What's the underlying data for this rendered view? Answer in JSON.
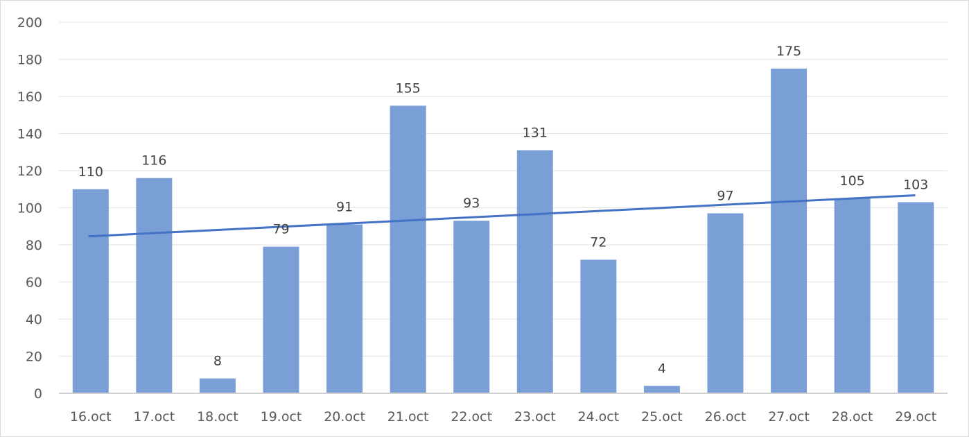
{
  "chart_data": {
    "type": "bar",
    "title": "",
    "xlabel": "",
    "ylabel": "",
    "categories": [
      "16.oct",
      "17.oct",
      "18.oct",
      "19.oct",
      "20.oct",
      "21.oct",
      "22.oct",
      "23.oct",
      "24.oct",
      "25.oct",
      "26.oct",
      "27.oct",
      "28.oct",
      "29.oct"
    ],
    "values": [
      110,
      116,
      8,
      79,
      91,
      155,
      93,
      131,
      72,
      4,
      97,
      175,
      105,
      103
    ],
    "data_labels": [
      "110",
      "116",
      "8",
      "79",
      "91",
      "155",
      "93",
      "131",
      "72",
      "4",
      "97",
      "175",
      "105",
      "103"
    ],
    "ylim": [
      0,
      200
    ],
    "yticks": [
      0,
      20,
      40,
      60,
      80,
      100,
      120,
      140,
      160,
      180,
      200
    ],
    "ytick_labels": [
      "0",
      "20",
      "40",
      "60",
      "80",
      "100",
      "120",
      "140",
      "160",
      "180",
      "200"
    ],
    "grid": true,
    "legend": "none",
    "trendline": {
      "type": "linear",
      "start_value": 84.6,
      "end_value": 106.7
    },
    "colors": {
      "bar": "#7a9fd7",
      "trendline": "#4472c4",
      "grid": "#e6e6e6",
      "axis": "#d0d0d0",
      "tick_text": "#595959",
      "label_text": "#404040"
    }
  }
}
